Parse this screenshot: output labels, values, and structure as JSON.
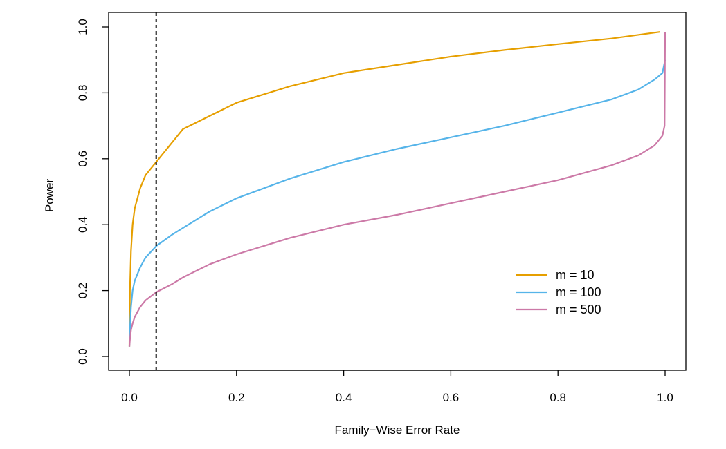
{
  "chart_data": {
    "type": "line",
    "xlabel": "Family−Wise Error Rate",
    "ylabel": "Power",
    "xlim": [
      0.0,
      1.0
    ],
    "ylim": [
      0.0,
      1.0
    ],
    "x_ticks": [
      "0.0",
      "0.2",
      "0.4",
      "0.6",
      "0.8",
      "1.0"
    ],
    "y_ticks": [
      "0.0",
      "0.2",
      "0.4",
      "0.6",
      "0.8",
      "1.0"
    ],
    "grid": false,
    "legend_position": "bottom-right",
    "reference_line": {
      "orientation": "vertical",
      "x": 0.05,
      "style": "dashed",
      "color": "#000000"
    },
    "series": [
      {
        "name": "m = 10",
        "color": "#E69F00",
        "points": [
          [
            0.0,
            0.03
          ],
          [
            0.001,
            0.2
          ],
          [
            0.003,
            0.32
          ],
          [
            0.006,
            0.4
          ],
          [
            0.01,
            0.45
          ],
          [
            0.02,
            0.51
          ],
          [
            0.03,
            0.55
          ],
          [
            0.05,
            0.59
          ],
          [
            0.08,
            0.65
          ],
          [
            0.1,
            0.69
          ],
          [
            0.15,
            0.73
          ],
          [
            0.2,
            0.77
          ],
          [
            0.3,
            0.82
          ],
          [
            0.4,
            0.86
          ],
          [
            0.5,
            0.885
          ],
          [
            0.6,
            0.91
          ],
          [
            0.7,
            0.93
          ],
          [
            0.8,
            0.948
          ],
          [
            0.9,
            0.965
          ],
          [
            0.99,
            0.985
          ]
        ]
      },
      {
        "name": "m = 100",
        "color": "#56B4E9",
        "points": [
          [
            0.0,
            0.03
          ],
          [
            0.001,
            0.08
          ],
          [
            0.003,
            0.15
          ],
          [
            0.006,
            0.2
          ],
          [
            0.01,
            0.23
          ],
          [
            0.02,
            0.27
          ],
          [
            0.03,
            0.3
          ],
          [
            0.05,
            0.335
          ],
          [
            0.08,
            0.37
          ],
          [
            0.1,
            0.39
          ],
          [
            0.15,
            0.44
          ],
          [
            0.2,
            0.48
          ],
          [
            0.3,
            0.54
          ],
          [
            0.4,
            0.59
          ],
          [
            0.5,
            0.63
          ],
          [
            0.6,
            0.665
          ],
          [
            0.7,
            0.7
          ],
          [
            0.8,
            0.74
          ],
          [
            0.9,
            0.78
          ],
          [
            0.95,
            0.81
          ],
          [
            0.98,
            0.84
          ],
          [
            0.995,
            0.86
          ],
          [
            1.0,
            0.9
          ]
        ]
      },
      {
        "name": "m = 500",
        "color": "#CC79A7",
        "points": [
          [
            0.0,
            0.03
          ],
          [
            0.001,
            0.05
          ],
          [
            0.003,
            0.08
          ],
          [
            0.006,
            0.1
          ],
          [
            0.01,
            0.12
          ],
          [
            0.02,
            0.15
          ],
          [
            0.03,
            0.17
          ],
          [
            0.05,
            0.195
          ],
          [
            0.08,
            0.22
          ],
          [
            0.1,
            0.24
          ],
          [
            0.15,
            0.28
          ],
          [
            0.2,
            0.31
          ],
          [
            0.3,
            0.36
          ],
          [
            0.4,
            0.4
          ],
          [
            0.5,
            0.43
          ],
          [
            0.6,
            0.465
          ],
          [
            0.7,
            0.5
          ],
          [
            0.8,
            0.535
          ],
          [
            0.9,
            0.58
          ],
          [
            0.95,
            0.61
          ],
          [
            0.98,
            0.64
          ],
          [
            0.995,
            0.67
          ],
          [
            0.999,
            0.7
          ],
          [
            1.0,
            0.985
          ]
        ]
      }
    ]
  }
}
